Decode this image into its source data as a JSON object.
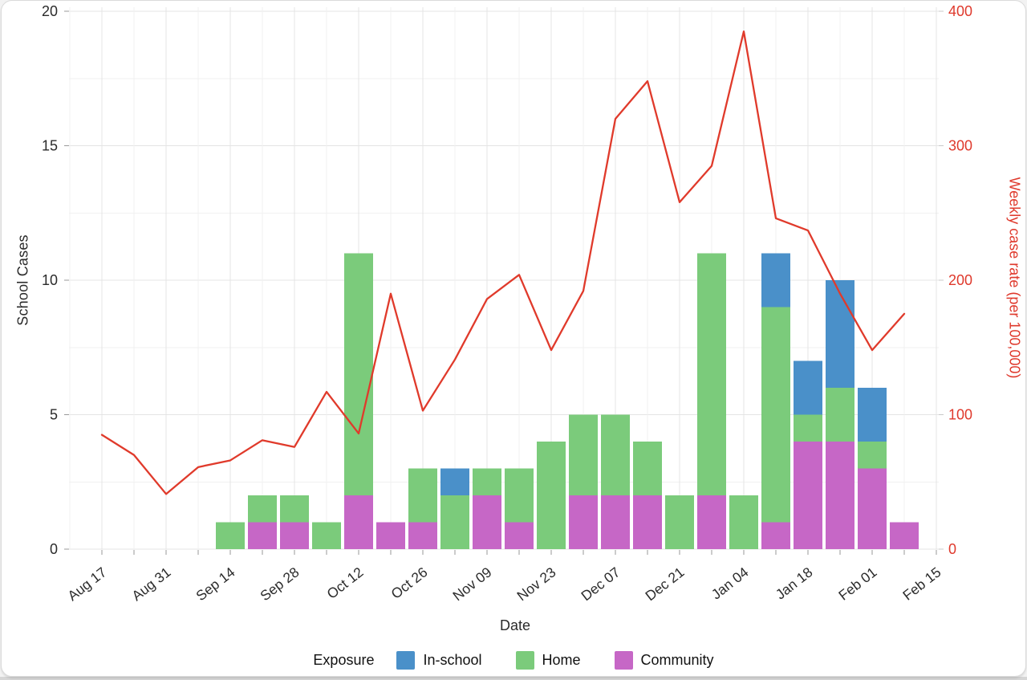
{
  "page": {
    "background": "#ffffff",
    "card_border": "#dadada"
  },
  "chart_data": {
    "type": "bar",
    "subtype": "stacked-bar-with-line-dual-axis",
    "weeks": [
      "Aug 17",
      "Aug 24",
      "Aug 31",
      "Sep 07",
      "Sep 14",
      "Sep 21",
      "Sep 28",
      "Oct 05",
      "Oct 12",
      "Oct 19",
      "Oct 26",
      "Nov 02",
      "Nov 09",
      "Nov 16",
      "Nov 23",
      "Nov 30",
      "Dec 07",
      "Dec 14",
      "Dec 21",
      "Dec 28",
      "Jan 04",
      "Jan 11",
      "Jan 18",
      "Jan 25",
      "Feb 01",
      "Feb 08",
      "Feb 15"
    ],
    "x_tick_labels": [
      "Aug 17",
      "Aug 31",
      "Sep 14",
      "Sep 28",
      "Oct 12",
      "Oct 26",
      "Nov 09",
      "Nov 23",
      "Dec 07",
      "Dec 21",
      "Jan 04",
      "Jan 18",
      "Feb 01",
      "Feb 15"
    ],
    "series": [
      {
        "name": "Community",
        "color": "#c667c6",
        "values": [
          0,
          0,
          0,
          0,
          0,
          1,
          1,
          0,
          2,
          1,
          1,
          0,
          2,
          1,
          0,
          2,
          2,
          2,
          0,
          2,
          0,
          1,
          4,
          4,
          3,
          1,
          0
        ]
      },
      {
        "name": "Home",
        "color": "#7bcb7b",
        "values": [
          0,
          0,
          0,
          0,
          1,
          1,
          1,
          1,
          9,
          0,
          2,
          2,
          1,
          2,
          4,
          3,
          3,
          2,
          2,
          9,
          2,
          8,
          1,
          2,
          1,
          0,
          0
        ]
      },
      {
        "name": "In-school",
        "color": "#4a90c9",
        "values": [
          0,
          0,
          0,
          0,
          0,
          0,
          0,
          0,
          0,
          0,
          0,
          1,
          0,
          0,
          0,
          0,
          0,
          0,
          0,
          0,
          0,
          2,
          2,
          4,
          2,
          0,
          0
        ]
      }
    ],
    "line_series": {
      "name": "Weekly case rate (per 100,000)",
      "color": "#e03a2b",
      "values": [
        85,
        70,
        41,
        61,
        66,
        81,
        76,
        117,
        86,
        190,
        103,
        141,
        186,
        204,
        148,
        192,
        320,
        348,
        258,
        285,
        385,
        246,
        237,
        190,
        148,
        175,
        null
      ]
    },
    "left_axis": {
      "label": "School Cases",
      "ticks": [
        0,
        5,
        10,
        15,
        20
      ],
      "range": [
        0,
        20
      ],
      "minor_step": 2.5,
      "color": "#2b2b2b"
    },
    "right_axis": {
      "label": "Weekly case rate (per 100,000)",
      "ticks": [
        0,
        100,
        200,
        300,
        400
      ],
      "range": [
        0,
        400
      ],
      "color": "#df392c"
    },
    "x_axis": {
      "label": "Date"
    },
    "legend": {
      "title": "Exposure",
      "items": [
        {
          "label": "In-school",
          "color": "#4a90c9"
        },
        {
          "label": "Home",
          "color": "#7bcb7b"
        },
        {
          "label": "Community",
          "color": "#c667c6"
        }
      ],
      "position": "bottom"
    },
    "grid": {
      "major_color": "#e4e4e4",
      "minor_color": "#f1f1f1",
      "on": true
    }
  }
}
